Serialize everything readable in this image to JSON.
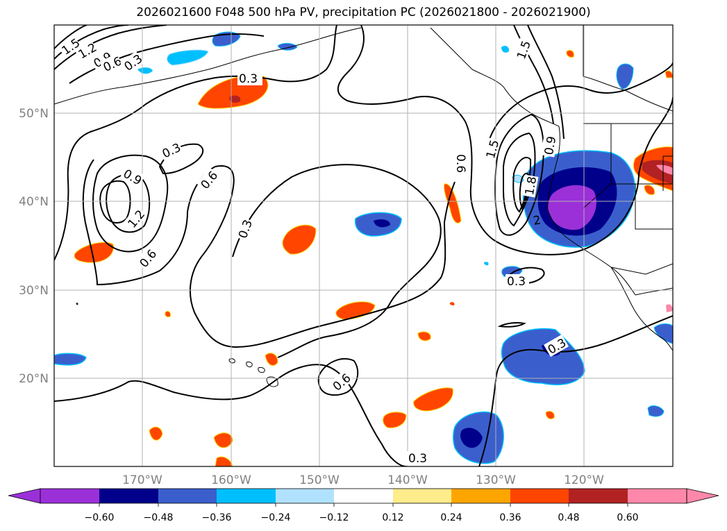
{
  "title": "2026021600 F048 500 hPa PV, precipitation PC (2026021800 - 2026021900)",
  "map": {
    "lon_labels": [
      "170°W",
      "160°W",
      "150°W",
      "140°W",
      "130°W",
      "120°W"
    ],
    "lat_labels": [
      "50°N",
      "40°N",
      "30°N",
      "20°N"
    ],
    "extent": {
      "lon": [
        -180,
        -110
      ],
      "lat": [
        10,
        60
      ]
    }
  },
  "contour_labels": [
    "1.5",
    "1.2",
    "0.9",
    "0.6",
    "0.3",
    "0.3",
    "0.3",
    "0.9",
    "1.2",
    "0.6",
    "0.6",
    "0.3",
    "0.9",
    "1.5",
    "1.8",
    "0.6",
    "0.3",
    "0.3",
    "0.6",
    "0.3",
    "1.5",
    "2"
  ],
  "colorbar": {
    "tick_labels": [
      "−0.60",
      "−0.48",
      "−0.36",
      "−0.24",
      "−0.12",
      "0.12",
      "0.24",
      "0.36",
      "0.48",
      "0.60"
    ],
    "colors": [
      "#9b30d9",
      "#00008b",
      "#3a5fcd",
      "#00bfff",
      "#b0e2ff",
      "#ffffff",
      "#ffec8b",
      "#ffa500",
      "#ff4500",
      "#b22222",
      "#ff88aa"
    ]
  },
  "colors": {
    "neg_strong": "#9b30d9",
    "neg_dark": "#00008b",
    "neg_mid": "#3a5fcd",
    "neg_light": "#00bfff",
    "neg_pale": "#b0e2ff",
    "pos_pale": "#ffec8b",
    "pos_orange": "#ffa500",
    "pos_red": "#ff4500",
    "pos_dark": "#b22222",
    "pos_pink": "#ff88aa",
    "grid": "#b0b0b0"
  }
}
